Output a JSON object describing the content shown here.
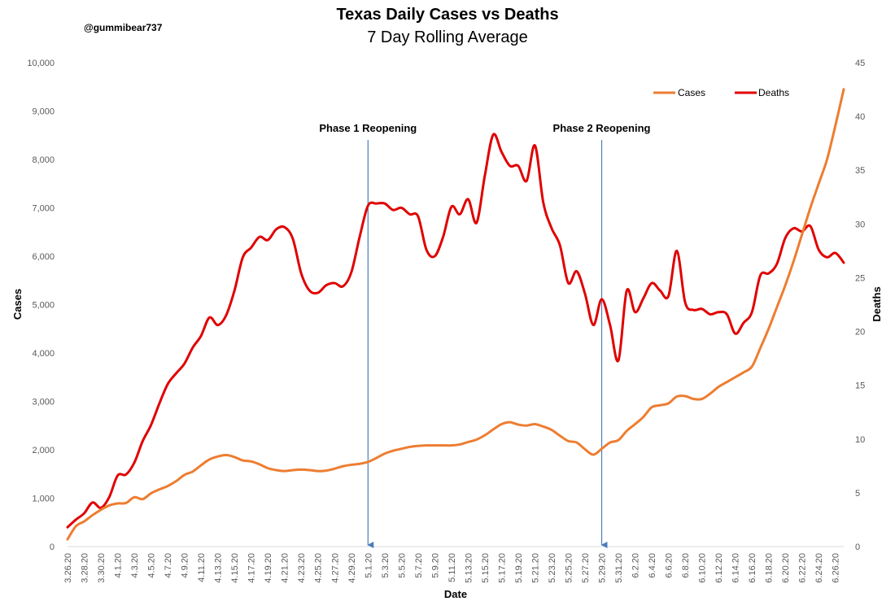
{
  "chart_data": {
    "type": "line",
    "title": "Texas Daily Cases vs Deaths",
    "subtitle": "7 Day Rolling Average",
    "credit": "@gummibear737",
    "xlabel": "Date",
    "ylabel": "Cases",
    "y2label": "Deaths",
    "ylim": [
      0,
      10000
    ],
    "y2lim": [
      0,
      45
    ],
    "yticks": [
      "0",
      "1,000",
      "2,000",
      "3,000",
      "4,000",
      "5,000",
      "6,000",
      "7,000",
      "8,000",
      "9,000",
      "10,000"
    ],
    "y2ticks": [
      "0",
      "5",
      "10",
      "15",
      "20",
      "25",
      "30",
      "35",
      "40",
      "45"
    ],
    "grid": false,
    "legend_position": "top-right",
    "colors": {
      "cases": "#ED7D31",
      "deaths": "#E00000",
      "annotation": "#4A7EBB"
    },
    "x": [
      "3.26.20",
      "3.27.20",
      "3.28.20",
      "3.29.20",
      "3.30.20",
      "3.31.20",
      "4.1.20",
      "4.2.20",
      "4.3.20",
      "4.4.20",
      "4.5.20",
      "4.6.20",
      "4.7.20",
      "4.8.20",
      "4.9.20",
      "4.10.20",
      "4.11.20",
      "4.12.20",
      "4.13.20",
      "4.14.20",
      "4.15.20",
      "4.16.20",
      "4.17.20",
      "4.18.20",
      "4.19.20",
      "4.20.20",
      "4.21.20",
      "4.22.20",
      "4.23.20",
      "4.24.20",
      "4.25.20",
      "4.26.20",
      "4.27.20",
      "4.28.20",
      "4.29.20",
      "4.30.20",
      "5.1.20",
      "5.2.20",
      "5.3.20",
      "5.4.20",
      "5.5.20",
      "5.6.20",
      "5.7.20",
      "5.8.20",
      "5.9.20",
      "5.10.20",
      "5.11.20",
      "5.12.20",
      "5.13.20",
      "5.14.20",
      "5.15.20",
      "5.16.20",
      "5.17.20",
      "5.18.20",
      "5.19.20",
      "5.20.20",
      "5.21.20",
      "5.22.20",
      "5.23.20",
      "5.24.20",
      "5.25.20",
      "5.26.20",
      "5.27.20",
      "5.28.20",
      "5.29.20",
      "5.30.20",
      "5.31.20",
      "6.1.20",
      "6.2.20",
      "6.3.20",
      "6.4.20",
      "6.5.20",
      "6.6.20",
      "6.7.20",
      "6.8.20",
      "6.9.20",
      "6.10.20",
      "6.11.20",
      "6.12.20",
      "6.13.20",
      "6.14.20",
      "6.15.20",
      "6.16.20",
      "6.17.20",
      "6.18.20",
      "6.19.20",
      "6.20.20",
      "6.21.20",
      "6.22.20",
      "6.23.20",
      "6.24.20",
      "6.25.20",
      "6.26.20",
      "6.27.20"
    ],
    "x_tick_labels": [
      "3.26.20",
      "3.28.20",
      "3.30.20",
      "4.1.20",
      "4.3.20",
      "4.5.20",
      "4.7.20",
      "4.9.20",
      "4.11.20",
      "4.13.20",
      "4.15.20",
      "4.17.20",
      "4.19.20",
      "4.21.20",
      "4.23.20",
      "4.25.20",
      "4.27.20",
      "4.29.20",
      "5.1.20",
      "5.3.20",
      "5.5.20",
      "5.7.20",
      "5.9.20",
      "5.11.20",
      "5.13.20",
      "5.15.20",
      "5.17.20",
      "5.19.20",
      "5.21.20",
      "5.23.20",
      "5.25.20",
      "5.27.20",
      "5.29.20",
      "5.31.20",
      "6.2.20",
      "6.4.20",
      "6.6.20",
      "6.8.20",
      "6.10.20",
      "6.12.20",
      "6.14.20",
      "6.16.20",
      "6.18.20",
      "6.20.20",
      "6.22.20",
      "6.24.20",
      "6.26.20"
    ],
    "series": [
      {
        "name": "Cases",
        "axis": "left",
        "values": [
          150,
          420,
          520,
          650,
          760,
          850,
          890,
          900,
          1020,
          980,
          1100,
          1180,
          1250,
          1350,
          1480,
          1550,
          1680,
          1800,
          1860,
          1890,
          1850,
          1780,
          1760,
          1700,
          1620,
          1580,
          1560,
          1580,
          1590,
          1580,
          1560,
          1570,
          1610,
          1660,
          1690,
          1710,
          1750,
          1830,
          1920,
          1980,
          2020,
          2060,
          2080,
          2090,
          2090,
          2090,
          2090,
          2110,
          2160,
          2210,
          2300,
          2420,
          2530,
          2570,
          2520,
          2500,
          2530,
          2480,
          2410,
          2290,
          2180,
          2150,
          2010,
          1900,
          2020,
          2150,
          2200,
          2390,
          2530,
          2680,
          2880,
          2920,
          2960,
          3100,
          3110,
          3050,
          3050,
          3160,
          3300,
          3400,
          3500,
          3600,
          3720,
          4100,
          4500,
          4950,
          5400,
          5900,
          6450,
          7000,
          7500,
          8000,
          8700,
          9450
        ]
      },
      {
        "name": "Deaths",
        "axis": "right",
        "values": [
          1.8,
          2.5,
          3.1,
          4.1,
          3.6,
          4.6,
          6.6,
          6.7,
          7.8,
          9.8,
          11.3,
          13.3,
          15.1,
          16.1,
          17.0,
          18.5,
          19.6,
          21.3,
          20.6,
          21.5,
          23.8,
          26.9,
          27.8,
          28.8,
          28.5,
          29.5,
          29.7,
          28.6,
          25.4,
          23.8,
          23.6,
          24.3,
          24.5,
          24.2,
          25.5,
          28.8,
          31.7,
          31.9,
          31.9,
          31.3,
          31.5,
          30.9,
          30.7,
          27.6,
          27.0,
          28.8,
          31.6,
          30.9,
          32.3,
          30.1,
          34.5,
          38.3,
          36.7,
          35.4,
          35.4,
          34.0,
          37.3,
          32.0,
          29.6,
          28.0,
          24.5,
          25.6,
          23.5,
          20.6,
          23.0,
          20.6,
          17.3,
          23.8,
          21.8,
          23.1,
          24.5,
          23.8,
          23.3,
          27.5,
          22.7,
          22.0,
          22.1,
          21.6,
          21.8,
          21.6,
          19.8,
          20.8,
          21.8,
          25.2,
          25.4,
          26.3,
          28.7,
          29.6,
          29.3,
          29.8,
          27.6,
          26.9,
          27.3,
          26.4
        ]
      }
    ],
    "annotations": [
      {
        "label": "Phase 1 Reopening",
        "x": "5.1.20"
      },
      {
        "label": "Phase 2 Reopening",
        "x": "5.29.20"
      }
    ]
  }
}
